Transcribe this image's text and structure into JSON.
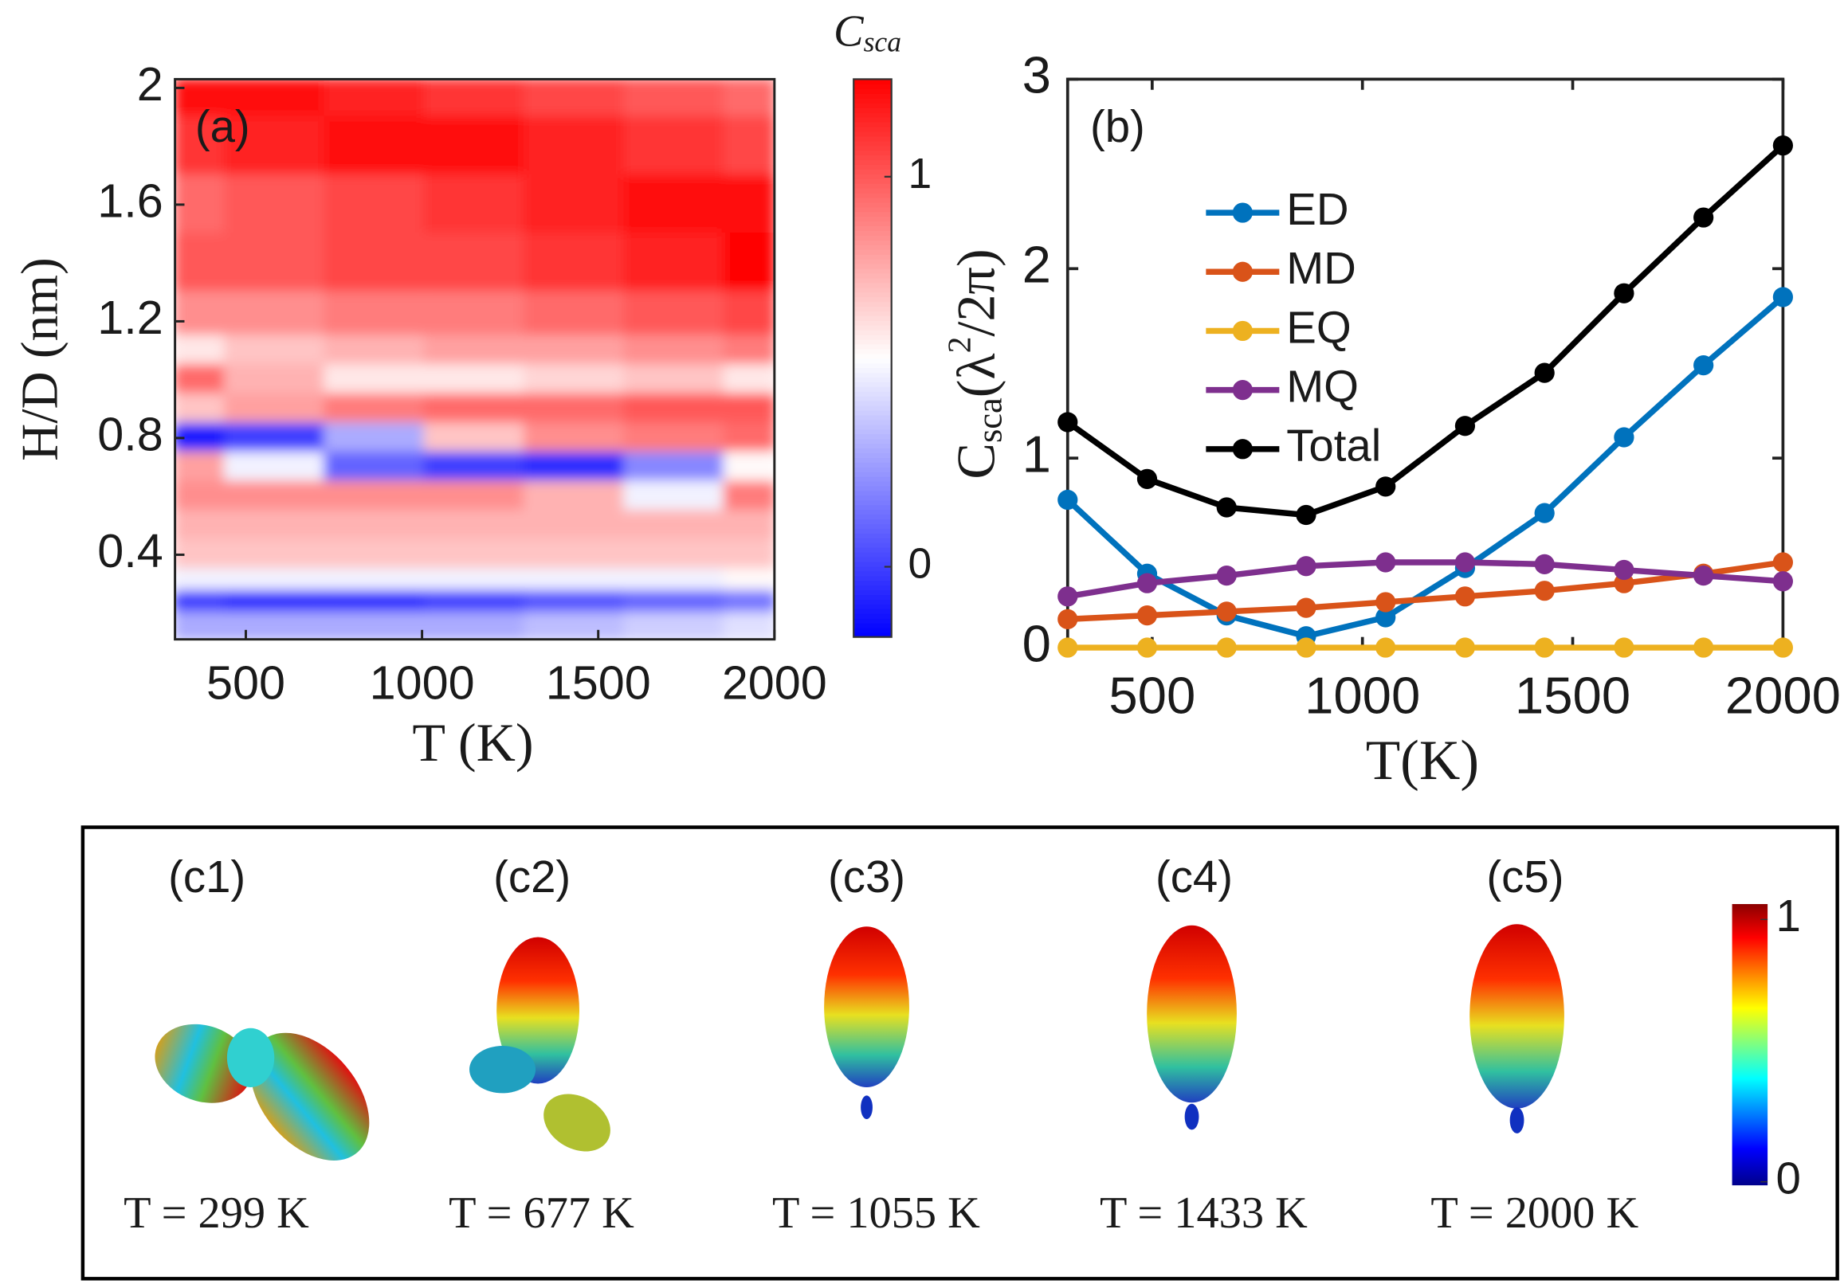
{
  "chart_data": [
    {
      "type": "heatmap",
      "panel_label": "(a)",
      "x_label": "T (K)",
      "y_label": "H/D (nm)",
      "colorbar_title": [
        "C",
        "sca"
      ],
      "x": [
        299,
        583,
        866,
        1150,
        1433,
        1717,
        2000
      ],
      "y": [
        2.0,
        1.8,
        1.6,
        1.4,
        1.2,
        1.1,
        1.0,
        0.9,
        0.8,
        0.7,
        0.6,
        0.5,
        0.4,
        0.3,
        0.25,
        0.15
      ],
      "z": [
        [
          1.2,
          1.2,
          1.15,
          1.1,
          1.05,
          1.0,
          0.95
        ],
        [
          1.1,
          1.15,
          1.2,
          1.2,
          1.15,
          1.1,
          1.05
        ],
        [
          0.95,
          1.0,
          1.05,
          1.1,
          1.15,
          1.2,
          1.2
        ],
        [
          1.0,
          1.0,
          1.05,
          1.05,
          1.1,
          1.15,
          1.25
        ],
        [
          0.85,
          0.85,
          0.9,
          0.9,
          0.95,
          1.0,
          1.05
        ],
        [
          0.6,
          0.7,
          0.75,
          0.8,
          0.8,
          0.85,
          0.9
        ],
        [
          0.95,
          0.75,
          0.6,
          0.6,
          0.65,
          0.7,
          0.6
        ],
        [
          0.7,
          0.8,
          0.9,
          0.95,
          0.95,
          1.0,
          1.0
        ],
        [
          -0.1,
          0.0,
          0.3,
          0.7,
          0.85,
          0.9,
          0.95
        ],
        [
          0.8,
          0.5,
          0.1,
          0.0,
          -0.05,
          0.2,
          0.55
        ],
        [
          0.85,
          0.85,
          0.85,
          0.85,
          0.75,
          0.5,
          0.9
        ],
        [
          0.75,
          0.75,
          0.75,
          0.75,
          0.75,
          0.75,
          0.75
        ],
        [
          0.7,
          0.7,
          0.7,
          0.7,
          0.7,
          0.7,
          0.7
        ],
        [
          0.5,
          0.5,
          0.5,
          0.5,
          0.5,
          0.5,
          0.55
        ],
        [
          0.0,
          -0.05,
          -0.05,
          0.0,
          0.05,
          0.1,
          0.15
        ],
        [
          0.3,
          0.3,
          0.3,
          0.3,
          0.35,
          0.4,
          0.45
        ]
      ],
      "xlim": [
        299,
        2000
      ],
      "ylim": [
        0.11,
        2.03
      ],
      "xticks": [
        500,
        1000,
        1500,
        2000
      ],
      "yticks": [
        0.4,
        0.8,
        1.2,
        1.6,
        2
      ],
      "clim": [
        -0.18,
        1.25
      ],
      "cticks": [
        0,
        1
      ],
      "colormap": "blue-white-red"
    },
    {
      "type": "line",
      "panel_label": "(b)",
      "x_label": "T(K)",
      "y_label": [
        "C",
        "sca",
        "(λ",
        "2",
        "/2π)"
      ],
      "x": [
        299,
        488,
        677,
        866,
        1055,
        1244,
        1433,
        1622,
        1811,
        2000
      ],
      "series": [
        {
          "name": "ED",
          "color": "#0072bd",
          "values": [
            0.78,
            0.39,
            0.17,
            0.06,
            0.16,
            0.42,
            0.71,
            1.11,
            1.49,
            1.85
          ]
        },
        {
          "name": "MD",
          "color": "#d95319",
          "values": [
            0.15,
            0.17,
            0.19,
            0.21,
            0.24,
            0.27,
            0.3,
            0.34,
            0.39,
            0.45
          ]
        },
        {
          "name": "EQ",
          "color": "#edb120",
          "values": [
            0,
            0,
            0,
            0,
            0,
            0,
            0,
            0,
            0,
            0
          ]
        },
        {
          "name": "MQ",
          "color": "#7e2f8e",
          "values": [
            0.27,
            0.34,
            0.38,
            0.43,
            0.45,
            0.45,
            0.44,
            0.41,
            0.38,
            0.35
          ]
        },
        {
          "name": "Total",
          "color": "#000000",
          "values": [
            1.19,
            0.89,
            0.74,
            0.7,
            0.85,
            1.17,
            1.45,
            1.87,
            2.27,
            2.65
          ]
        }
      ],
      "xlim": [
        299,
        2000
      ],
      "ylim": [
        0,
        3
      ],
      "xticks": [
        500,
        1000,
        1500,
        2000
      ],
      "yticks": [
        0,
        1,
        2,
        3
      ],
      "legend": "upper left"
    }
  ],
  "panel_c": {
    "panels": [
      {
        "label": "(c1)",
        "caption": "T = 299 K"
      },
      {
        "label": "(c2)",
        "caption": "T = 677 K"
      },
      {
        "label": "(c3)",
        "caption": "T = 1055 K"
      },
      {
        "label": "(c4)",
        "caption": "T = 1433 K"
      },
      {
        "label": "(c5)",
        "caption": "T = 2000 K"
      }
    ],
    "colorbar_ticks": [
      0,
      1
    ]
  }
}
